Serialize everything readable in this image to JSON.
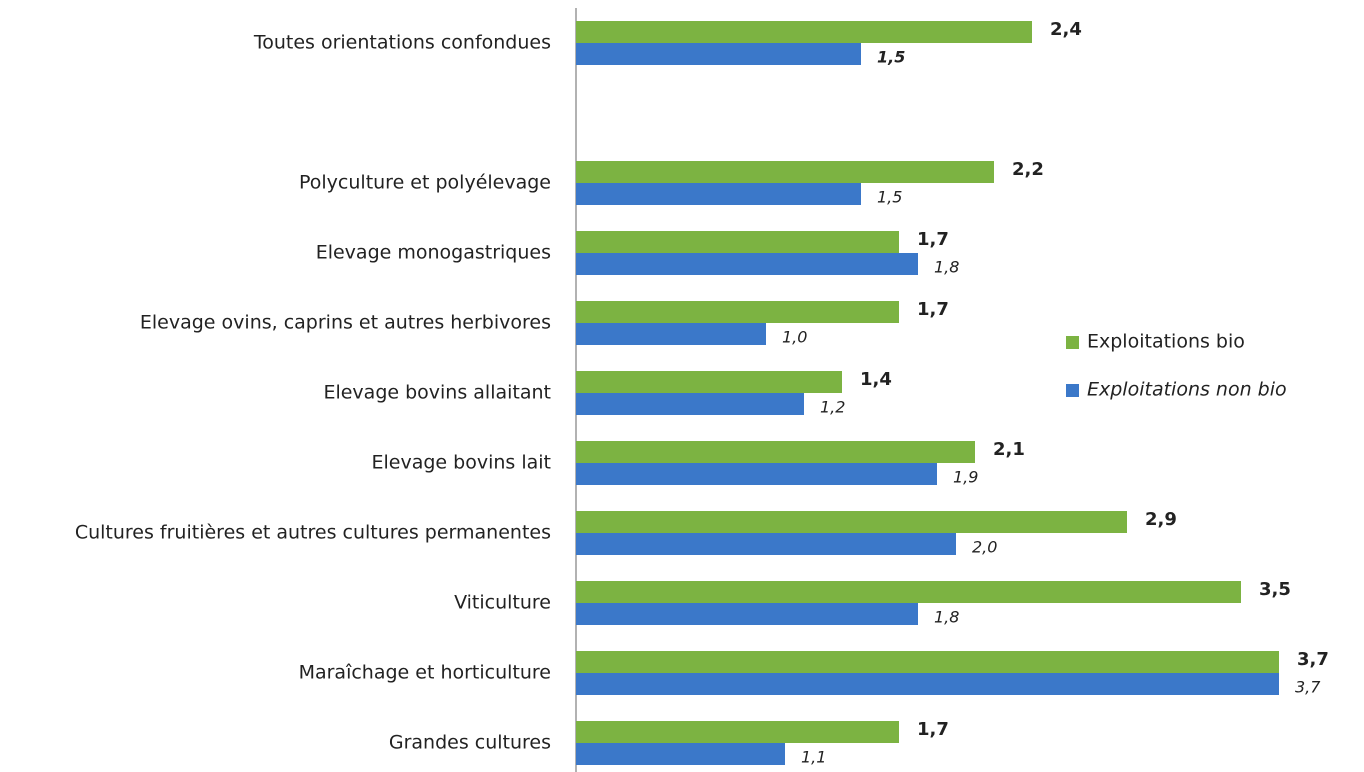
{
  "chart_data": {
    "type": "bar",
    "orientation": "horizontal",
    "categories": [
      "Toutes orientations confondues",
      null,
      "Polyculture et polyélevage",
      "Elevage monogastriques",
      "Elevage ovins, caprins et autres herbivores",
      "Elevage bovins allaitant",
      "Elevage bovins lait",
      "Cultures fruitières et autres cultures permanentes",
      "Viticulture",
      "Maraîchage et horticulture",
      "Grandes cultures"
    ],
    "series": [
      {
        "name": "Exploitations bio",
        "color": "#7cb342",
        "values": [
          2.4,
          null,
          2.2,
          1.7,
          1.7,
          1.4,
          2.1,
          2.9,
          3.5,
          3.7,
          1.7
        ],
        "value_labels": [
          "2,4",
          null,
          "2,2",
          "1,7",
          "1,7",
          "1,4",
          "2,1",
          "2,9",
          "3,5",
          "3,7",
          "1,7"
        ]
      },
      {
        "name": "Exploitations non bio",
        "color": "#3b78c9",
        "values": [
          1.5,
          null,
          1.5,
          1.8,
          1.0,
          1.2,
          1.9,
          2.0,
          1.8,
          3.7,
          1.1
        ],
        "value_labels": [
          "1,5",
          null,
          "1,5",
          "1,8",
          "1,0",
          "1,2",
          "1,9",
          "2,0",
          "1,8",
          "3,7",
          "1,1"
        ]
      }
    ],
    "legend": "right"
  }
}
